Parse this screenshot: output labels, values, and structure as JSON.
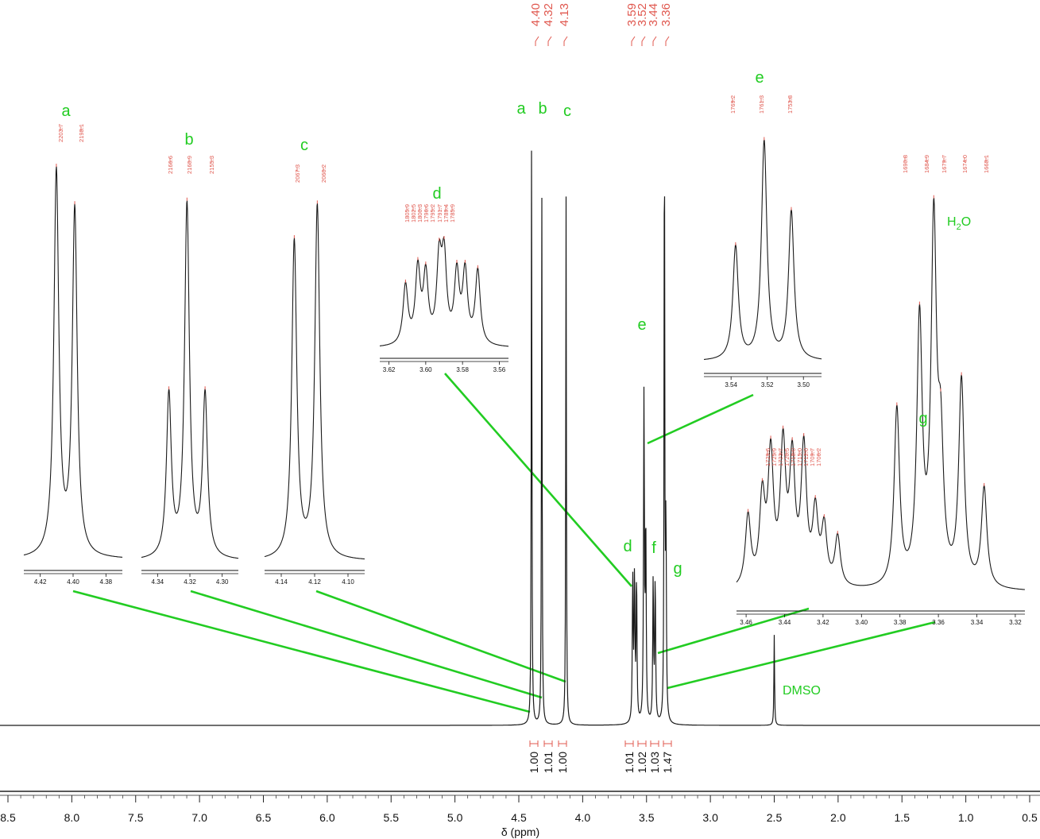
{
  "colors": {
    "trace": "#1a1a1a",
    "peak_label": "#e0584f",
    "annotation": "#22cc22",
    "connector": "#22cc22"
  },
  "chart_data": {
    "type": "line",
    "title": "",
    "xlabel": "δ (ppm)",
    "xlim": [
      8.5,
      0.5
    ],
    "x_reversed": true,
    "xticks": [
      "8.5",
      "8.0",
      "7.5",
      "7.0",
      "6.5",
      "6.0",
      "5.5",
      "5.0",
      "4.5",
      "4.0",
      "3.5",
      "3.0",
      "2.5",
      "2.0",
      "1.5",
      "1.0",
      "0.5"
    ],
    "top_peak_labels": [
      "4.40",
      "4.32",
      "4.13",
      "3.59",
      "3.52",
      "3.44",
      "3.36"
    ],
    "main_peaks": [
      {
        "label": "a",
        "ppm": 4.4,
        "height": 0.91
      },
      {
        "label": "b",
        "ppm": 4.32,
        "height": 0.83
      },
      {
        "label": "c",
        "ppm": 4.13,
        "height": 0.82
      },
      {
        "label": "d",
        "ppm": 3.59,
        "height": 0.22
      },
      {
        "label": "e",
        "ppm": 3.52,
        "height": 0.5
      },
      {
        "label": "f",
        "ppm": 3.44,
        "height": 0.22
      },
      {
        "label": "g",
        "ppm": 3.36,
        "height": 0.98
      },
      {
        "label": "DMSO",
        "ppm": 2.5,
        "height": 0.14
      }
    ],
    "peak_letters": [
      "a",
      "b",
      "c",
      "d",
      "e",
      "f",
      "g"
    ],
    "solvent_label": "DMSO",
    "integrations": [
      "1.00",
      "1.01",
      "1.00",
      "1.01",
      "1.02",
      "1.03",
      "1.47"
    ],
    "insets": [
      {
        "label": "a",
        "hz": [
          "2203.7",
          "2198.1"
        ],
        "xticks": [
          "4.42",
          "4.40",
          "4.38"
        ]
      },
      {
        "label": "b",
        "hz": [
          "2166.6",
          "2160.9",
          "2155.3"
        ],
        "xticks": [
          "4.34",
          "4.32",
          "4.30"
        ]
      },
      {
        "label": "c",
        "hz": [
          "2067.3",
          "2060.2"
        ],
        "xticks": [
          "4.14",
          "4.12",
          "4.10"
        ]
      },
      {
        "label": "d",
        "hz": [
          "1805.9",
          "1802.5",
          "1800.3",
          "1796.6",
          "1795.2",
          "1791.7",
          "1789.4",
          "1785.9"
        ],
        "xticks": [
          "3.62",
          "3.60",
          "3.58",
          "3.56"
        ]
      },
      {
        "label": "e",
        "hz": [
          "1769.2",
          "1761.3",
          "1753.8"
        ],
        "xticks": [
          "3.54",
          "3.52",
          "3.50"
        ]
      },
      {
        "label": "f",
        "hz": [
          "1729.6",
          "1725.9",
          "1723.7",
          "1720.5",
          "1718.0",
          "1715.0",
          "1712.0",
          "1709.7",
          "1706.2"
        ],
        "xticks": [
          "3.46",
          "3.44",
          "3.42",
          "3.40",
          "3.38",
          "3.36",
          "3.34",
          "3.32"
        ]
      },
      {
        "label": "g",
        "hz": [
          "1690.8",
          "1684.9",
          "1679.7",
          "1674.0",
          "1668.1"
        ]
      }
    ],
    "water_label": {
      "main": "H",
      "sub": "2",
      "tail": "O"
    }
  }
}
